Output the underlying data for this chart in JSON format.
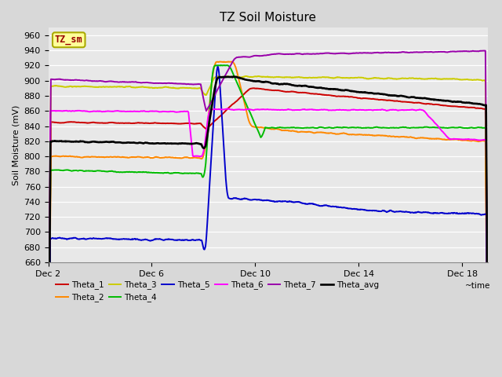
{
  "title": "TZ Soil Moisture",
  "ylabel": "Soil Moisture (mV)",
  "xlabel": "~time",
  "ylim": [
    660,
    970
  ],
  "yticks": [
    660,
    680,
    700,
    720,
    740,
    760,
    780,
    800,
    820,
    840,
    860,
    880,
    900,
    920,
    940,
    960
  ],
  "bg_color": "#d8d8d8",
  "plot_bg": "#e8e8e8",
  "series_colors": {
    "Theta_1": "#cc0000",
    "Theta_2": "#ff8800",
    "Theta_3": "#cccc00",
    "Theta_4": "#00bb00",
    "Theta_5": "#0000cc",
    "Theta_6": "#ff00ff",
    "Theta_7": "#9900aa",
    "Theta_avg": "#000000"
  },
  "xstart": 0,
  "xend": 17,
  "xtick_positions": [
    0,
    4,
    8,
    12,
    16
  ],
  "xtick_labels": [
    "Dec 2",
    "Dec 6",
    "Dec 10",
    "Dec 14",
    "Dec 18"
  ],
  "annotation_box": "TZ_sm",
  "annotation_box_facecolor": "#ffff99",
  "annotation_box_edgecolor": "#aaaa00",
  "annotation_text_color": "#990000"
}
